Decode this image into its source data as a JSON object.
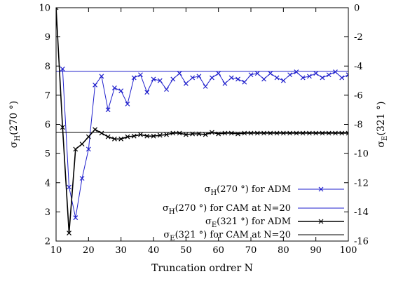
{
  "chart_data": {
    "type": "line",
    "xlabel": "Truncation ordrer N",
    "ylabel_left": {
      "main": "σ",
      "sub": "H",
      "rest": "(270 °)"
    },
    "ylabel_right": {
      "main": "σ",
      "sub": "E",
      "rest": "(321 °)"
    },
    "xlim": [
      10,
      100
    ],
    "ylim_left": [
      2,
      10
    ],
    "ylim_right": [
      -16,
      0
    ],
    "x_ticks": [
      10,
      20,
      30,
      40,
      50,
      60,
      70,
      80,
      90,
      100
    ],
    "y_ticks_left": [
      2,
      3,
      4,
      5,
      6,
      7,
      8,
      9,
      10
    ],
    "y_ticks_right": [
      -16,
      -14,
      -12,
      -10,
      -8,
      -6,
      -4,
      -2,
      0
    ],
    "legend_position": "bottom-right",
    "series": [
      {
        "key": "h_adm",
        "axis": "left",
        "color": "#1f1fcc",
        "marker": "x",
        "legend": {
          "main": "σ",
          "sub": "H",
          "rest": "(270 °) for ADM"
        },
        "x": [
          12,
          14,
          16,
          18,
          20,
          22,
          24,
          26,
          28,
          30,
          32,
          34,
          36,
          38,
          40,
          42,
          44,
          46,
          48,
          50,
          52,
          54,
          56,
          58,
          60,
          62,
          64,
          66,
          68,
          70,
          72,
          74,
          76,
          78,
          80,
          82,
          84,
          86,
          88,
          90,
          92,
          94,
          96,
          98,
          100
        ],
        "y": [
          7.9,
          3.85,
          2.8,
          4.15,
          5.15,
          7.35,
          7.65,
          6.5,
          7.25,
          7.15,
          6.7,
          7.6,
          7.7,
          7.1,
          7.55,
          7.5,
          7.2,
          7.55,
          7.75,
          7.4,
          7.6,
          7.65,
          7.3,
          7.6,
          7.75,
          7.4,
          7.6,
          7.55,
          7.45,
          7.7,
          7.75,
          7.55,
          7.75,
          7.6,
          7.5,
          7.7,
          7.8,
          7.6,
          7.65,
          7.75,
          7.6,
          7.7,
          7.8,
          7.6,
          7.7
        ]
      },
      {
        "key": "h_cam",
        "axis": "left",
        "color": "#1f1fcc",
        "marker": "none",
        "legend": {
          "main": "σ",
          "sub": "H",
          "rest": "(270 °) for CAM at N=20"
        },
        "x": [
          10,
          100
        ],
        "y": [
          7.82,
          7.82
        ]
      },
      {
        "key": "e_adm",
        "axis": "right",
        "color": "#000000",
        "marker": "x",
        "legend": {
          "main": "σ",
          "sub": "E",
          "rest": "(321 °) for ADM"
        },
        "x": [
          10,
          12,
          14,
          16,
          18,
          20,
          22,
          24,
          26,
          28,
          30,
          32,
          34,
          36,
          38,
          40,
          42,
          44,
          46,
          48,
          50,
          52,
          54,
          56,
          58,
          60,
          62,
          64,
          66,
          68,
          70,
          72,
          74,
          76,
          78,
          80,
          82,
          84,
          86,
          88,
          90,
          92,
          94,
          96,
          98,
          100
        ],
        "y": [
          0,
          -8.2,
          -15.45,
          -9.7,
          -9.35,
          -8.85,
          -8.35,
          -8.6,
          -8.85,
          -9.0,
          -9.0,
          -8.85,
          -8.8,
          -8.7,
          -8.8,
          -8.8,
          -8.75,
          -8.7,
          -8.6,
          -8.6,
          -8.7,
          -8.65,
          -8.65,
          -8.7,
          -8.55,
          -8.65,
          -8.6,
          -8.6,
          -8.65,
          -8.6,
          -8.6,
          -8.6,
          -8.6,
          -8.6,
          -8.6,
          -8.6,
          -8.6,
          -8.6,
          -8.6,
          -8.6,
          -8.6,
          -8.6,
          -8.6,
          -8.6,
          -8.6,
          -8.6
        ]
      },
      {
        "key": "e_cam",
        "axis": "right",
        "color": "#000000",
        "marker": "none",
        "legend": {
          "main": "σ",
          "sub": "E",
          "rest": "(321 °) for CAM at N=20"
        },
        "x": [
          10,
          100
        ],
        "y": [
          -8.55,
          -8.55
        ]
      }
    ]
  }
}
